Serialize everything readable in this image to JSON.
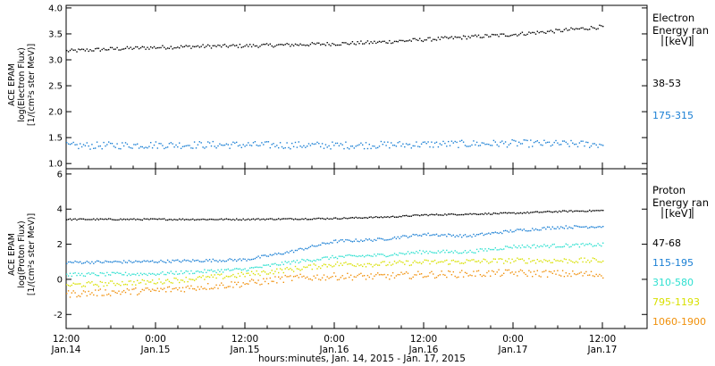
{
  "chart_data": [
    {
      "type": "scatter",
      "panel": "electron",
      "ylabel_lines": [
        "ACE EPAM",
        "log(Electron Flux)",
        "[1/(cm²s ster MeV)]"
      ],
      "ylim": [
        0.9,
        4.05
      ],
      "yticks": [
        "4.0",
        "3.5",
        "3.0",
        "2.5",
        "2.0",
        "1.5",
        "1.0"
      ],
      "legend_title_lines": [
        "Electron",
        "Energy ran",
        "[keV]"
      ],
      "series": [
        {
          "name": "38-53",
          "color": "#000000",
          "x": [
            0,
            6,
            12,
            18,
            24,
            30,
            36,
            42,
            48,
            54,
            60,
            66,
            72
          ],
          "y": [
            3.18,
            3.22,
            3.25,
            3.27,
            3.28,
            3.3,
            3.32,
            3.35,
            3.4,
            3.45,
            3.5,
            3.57,
            3.65
          ],
          "spread": 0.035
        },
        {
          "name": "175-315",
          "color": "#1a7fd4",
          "x": [
            0,
            12,
            24,
            36,
            48,
            60,
            72
          ],
          "y": [
            1.35,
            1.37,
            1.37,
            1.36,
            1.38,
            1.4,
            1.38
          ],
          "spread": 0.07
        }
      ]
    },
    {
      "type": "scatter",
      "panel": "proton",
      "ylabel_lines": [
        "ACE EPAM",
        "log(Proton Flux)",
        "[1/(cm²s ster MeV)]"
      ],
      "ylim": [
        -2.8,
        6.3
      ],
      "yticks": [
        "6",
        "4",
        "2",
        "0",
        "-2"
      ],
      "legend_title_lines": [
        "Proton",
        "Energy ran",
        "[keV]"
      ],
      "series": [
        {
          "name": "47-68",
          "color": "#000000",
          "x": [
            0,
            12,
            24,
            36,
            44,
            48,
            60,
            66,
            72
          ],
          "y": [
            3.45,
            3.45,
            3.45,
            3.5,
            3.6,
            3.7,
            3.8,
            3.9,
            3.95
          ],
          "spread": 0.04
        },
        {
          "name": "115-195",
          "color": "#1a7fd4",
          "x": [
            0,
            12,
            24,
            30,
            36,
            42,
            48,
            54,
            60,
            66,
            72
          ],
          "y": [
            1.0,
            1.05,
            1.15,
            1.6,
            2.2,
            2.3,
            2.6,
            2.5,
            2.8,
            3.0,
            3.05
          ],
          "spread": 0.08
        },
        {
          "name": "310-580",
          "color": "#2ee0d0",
          "x": [
            0,
            12,
            24,
            30,
            36,
            42,
            48,
            54,
            60,
            72
          ],
          "y": [
            0.3,
            0.35,
            0.6,
            1.0,
            1.3,
            1.4,
            1.6,
            1.6,
            1.9,
            2.0
          ],
          "spread": 0.1
        },
        {
          "name": "795-1193",
          "color": "#d8e000",
          "x": [
            0,
            12,
            24,
            30,
            36,
            42,
            48,
            60,
            72
          ],
          "y": [
            -0.3,
            -0.1,
            0.3,
            0.6,
            0.9,
            0.9,
            1.0,
            1.1,
            1.1
          ],
          "spread": 0.15
        },
        {
          "name": "1060-1900",
          "color": "#f0900a",
          "x": [
            0,
            12,
            24,
            30,
            36,
            42,
            48,
            60,
            72
          ],
          "y": [
            -0.8,
            -0.6,
            -0.2,
            0.1,
            0.2,
            0.2,
            0.3,
            0.4,
            0.3
          ],
          "spread": 0.2
        }
      ]
    }
  ],
  "x_axis": {
    "ticks": [
      {
        "t": 0,
        "top": "12:00",
        "bottom": "Jan.14"
      },
      {
        "t": 12,
        "top": "0:00",
        "bottom": "Jan.15"
      },
      {
        "t": 24,
        "top": "12:00",
        "bottom": "Jan.15"
      },
      {
        "t": 36,
        "top": "0:00",
        "bottom": "Jan.16"
      },
      {
        "t": 48,
        "top": "12:00",
        "bottom": "Jan.16"
      },
      {
        "t": 60,
        "top": "0:00",
        "bottom": "Jan.17"
      },
      {
        "t": 72,
        "top": "12:00",
        "bottom": "Jan.17"
      }
    ],
    "xlim": [
      0,
      78
    ],
    "label": "hours:minutes, Jan. 14, 2015 - Jan. 17, 2015"
  }
}
